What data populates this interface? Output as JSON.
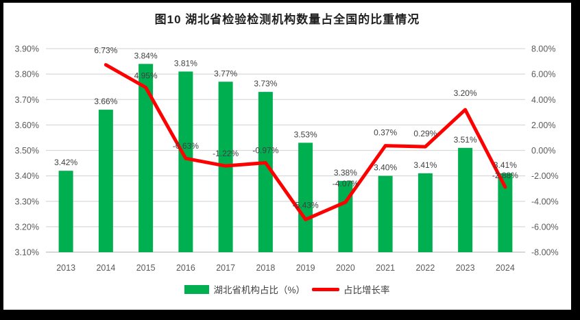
{
  "title": "图10 湖北省检验检测机构数量占全国的比重情况",
  "colors": {
    "bar": "#00B050",
    "line": "#FF0000",
    "grid": "#D9D9D9",
    "axis_line": "#BFBFBF",
    "tick_text": "#595959",
    "label_text": "#404040",
    "title_text": "#1F1F1F",
    "frame": "#000000",
    "background": "#FFFFFF"
  },
  "legend": [
    {
      "label": "湖北省机构占比（%）",
      "swatch": "bar",
      "color": "#00B050"
    },
    {
      "label": "占比增长率",
      "swatch": "line",
      "color": "#FF0000"
    }
  ],
  "chart_data": {
    "type": "combo-bar-line",
    "categories": [
      "2013",
      "2014",
      "2015",
      "2016",
      "2017",
      "2018",
      "2019",
      "2020",
      "2021",
      "2022",
      "2023",
      "2024"
    ],
    "series": [
      {
        "name": "湖北省机构占比（%）",
        "type": "bar",
        "axis": "left",
        "values": [
          3.42,
          3.66,
          3.84,
          3.81,
          3.77,
          3.73,
          3.53,
          3.38,
          3.4,
          3.41,
          3.51,
          3.41
        ],
        "labels": [
          "3.42%",
          "3.66%",
          "3.84%",
          "3.81%",
          "3.77%",
          "3.73%",
          "3.53%",
          "3.38%",
          "3.40%",
          "3.41%",
          "3.51%",
          "3.41%"
        ]
      },
      {
        "name": "占比增长率",
        "type": "line",
        "axis": "right",
        "values": [
          null,
          6.73,
          4.95,
          -0.63,
          -1.22,
          -0.97,
          -5.43,
          -4.07,
          0.37,
          0.29,
          3.2,
          -2.88
        ],
        "labels": [
          null,
          "6.73%",
          "4.95%",
          "-0.63%",
          "-1.22%",
          "-0.97%",
          "-5.43%",
          "-4.07%",
          "0.37%",
          "0.29%",
          "3.20%",
          "-2.88%"
        ]
      }
    ],
    "left_axis": {
      "min": 3.1,
      "max": 3.9,
      "step": 0.1,
      "ticks": [
        "3.90%",
        "3.80%",
        "3.70%",
        "3.60%",
        "3.50%",
        "3.40%",
        "3.30%",
        "3.20%",
        "3.10%"
      ]
    },
    "right_axis": {
      "min": -8.0,
      "max": 8.0,
      "step": 2.0,
      "ticks": [
        "8.00%",
        "6.00%",
        "4.00%",
        "2.00%",
        "0.00%",
        "-2.00%",
        "-4.00%",
        "-6.00%",
        "-8.00%"
      ]
    },
    "grid": "horizontal",
    "legend_position": "bottom"
  }
}
